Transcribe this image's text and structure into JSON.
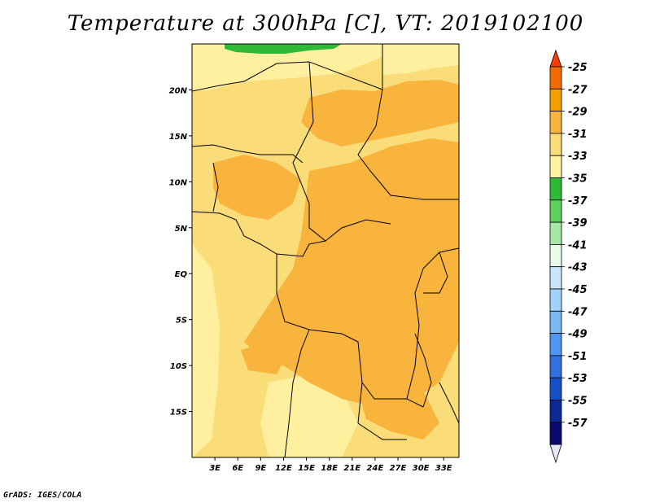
{
  "title": "Temperature at 300hPa [C], VT: 2019102100",
  "credit": "GrADS: IGES/COLA",
  "map": {
    "lat_labels": [
      "20N",
      "15N",
      "10N",
      "5N",
      "EQ",
      "5S",
      "10S",
      "15S"
    ],
    "lat_values": [
      20,
      15,
      10,
      5,
      0,
      -5,
      -10,
      -15
    ],
    "lon_labels": [
      "3E",
      "6E",
      "9E",
      "12E",
      "15E",
      "18E",
      "21E",
      "24E",
      "27E",
      "30E",
      "33E"
    ],
    "lon_values": [
      3,
      6,
      9,
      12,
      15,
      18,
      21,
      24,
      27,
      30,
      33
    ],
    "lat_range": [
      -20,
      25
    ],
    "lon_range": [
      0,
      35
    ]
  },
  "legend": {
    "labels": [
      "-25",
      "-27",
      "-29",
      "-31",
      "-33",
      "-35",
      "-37",
      "-39",
      "-41",
      "-43",
      "-45",
      "-47",
      "-49",
      "-51",
      "-53",
      "-55",
      "-57"
    ],
    "colors": [
      "#ff3c00",
      "#f26b00",
      "#f59f00",
      "#f8b43c",
      "#fadc78",
      "#fff5a0",
      "#2eba36",
      "#5ed25e",
      "#a6e8a6",
      "#e8fae8",
      "#c8e6fa",
      "#a0d2fa",
      "#7cb8f0",
      "#5096f0",
      "#3070e0",
      "#1450c8",
      "#0a2896",
      "#0a0a6e",
      "#e6e6fa"
    ]
  }
}
